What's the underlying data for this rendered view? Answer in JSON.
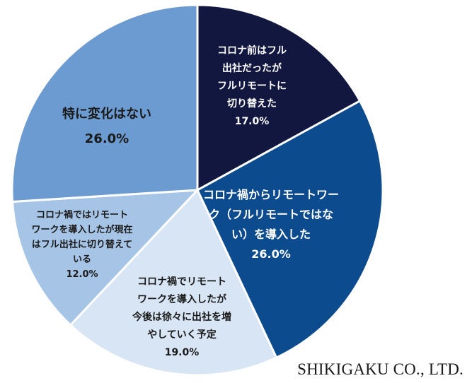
{
  "chart_data": {
    "type": "pie",
    "title": "",
    "start_angle_deg": 0,
    "direction": "clockwise",
    "slices": [
      {
        "label_lines": [
          "コロナ前はフル",
          "出社だったが",
          "フルリモートに",
          "切り替えた"
        ],
        "value": 17.0,
        "value_label": "17.0%",
        "color": "#12173f",
        "text_color": "#ffffff"
      },
      {
        "label_lines": [
          "コロナ禍からリモートワー",
          "ク（フルリモートではな",
          "い）を導入した"
        ],
        "value": 26.0,
        "value_label": "26.0%",
        "color": "#0d4b8f",
        "text_color": "#ffffff"
      },
      {
        "label_lines": [
          "コロナ禍でリモート",
          "ワークを導入したが",
          "今後は徐々に出社を増",
          "やしていく予定"
        ],
        "value": 19.0,
        "value_label": "19.0%",
        "color": "#d7e5f4",
        "text_color": "#1a1a1a"
      },
      {
        "label_lines": [
          "コロナ禍ではリモート",
          "ワークを導入したが現在",
          "はフル出社に切り替えて",
          "いる"
        ],
        "value": 12.0,
        "value_label": "12.0%",
        "color": "#a6c4e6",
        "text_color": "#1a1a1a"
      },
      {
        "label_lines": [
          "特に変化はない"
        ],
        "value": 26.0,
        "value_label": "26.0%",
        "color": "#6b9bd0",
        "text_color": "#1a1a1a"
      }
    ]
  },
  "watermark": "SHIKIGAKU CO., LTD."
}
